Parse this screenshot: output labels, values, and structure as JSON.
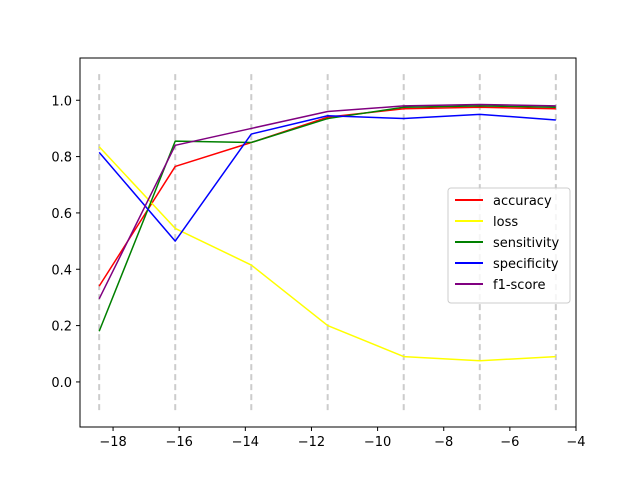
{
  "chart_data": {
    "type": "line",
    "title": "",
    "xlabel": "",
    "ylabel": "",
    "xlim": [
      -19.0,
      -4.0
    ],
    "ylim": [
      -0.16,
      1.15
    ],
    "xticks": [
      -18,
      -16,
      -14,
      -12,
      -10,
      -8,
      -6,
      -4
    ],
    "yticks": [
      0.0,
      0.2,
      0.4,
      0.6,
      0.8,
      1.0
    ],
    "xtick_labels": [
      "−18",
      "−16",
      "−14",
      "−12",
      "−10",
      "−8",
      "−6",
      "−4"
    ],
    "ytick_labels": [
      "0.0",
      "0.2",
      "0.4",
      "0.6",
      "0.8",
      "1.0"
    ],
    "vlines": {
      "x": [
        -18.42,
        -16.12,
        -13.82,
        -11.51,
        -9.21,
        -6.91,
        -4.61
      ],
      "ymin": -0.1,
      "ymax": 1.1,
      "color": "#cccccc",
      "style": "dashed"
    },
    "x": [
      -18.42,
      -16.12,
      -13.82,
      -11.51,
      -9.21,
      -6.91,
      -4.61
    ],
    "series": [
      {
        "name": "accuracy",
        "color": "#ff0000",
        "values": [
          0.34,
          0.765,
          0.85,
          0.94,
          0.97,
          0.975,
          0.97
        ]
      },
      {
        "name": "loss",
        "color": "#ffff00",
        "values": [
          0.835,
          0.545,
          0.415,
          0.2,
          0.09,
          0.075,
          0.09
        ]
      },
      {
        "name": "sensitivity",
        "color": "#008000",
        "values": [
          0.18,
          0.855,
          0.85,
          0.935,
          0.975,
          0.98,
          0.975
        ]
      },
      {
        "name": "specificity",
        "color": "#0000ff",
        "values": [
          0.815,
          0.5,
          0.88,
          0.945,
          0.935,
          0.95,
          0.93
        ]
      },
      {
        "name": "f1-score",
        "color": "#800080",
        "values": [
          0.295,
          0.84,
          0.9,
          0.96,
          0.98,
          0.985,
          0.98
        ]
      }
    ],
    "legend_position": "center-right",
    "grid": false
  }
}
